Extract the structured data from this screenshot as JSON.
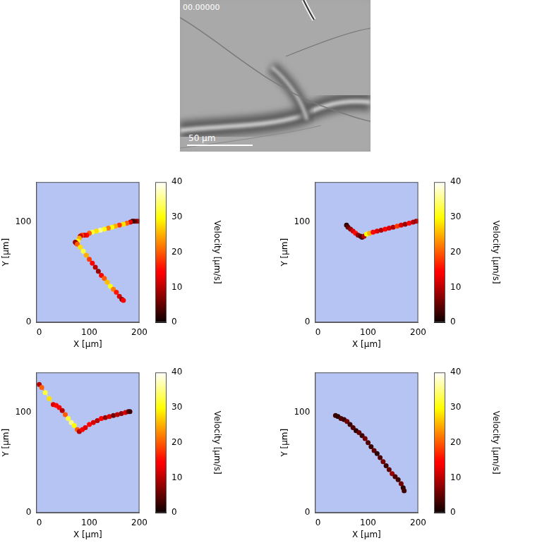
{
  "micrograph": {
    "timestamp": "00.00000",
    "scale_bar": "50 µm"
  },
  "chart_data": [
    {
      "type": "scatter",
      "xlabel": "X [µm]",
      "ylabel": "Y [µm]",
      "xlim": [
        -6,
        200
      ],
      "ylim": [
        0,
        140
      ],
      "xticks": [
        0,
        100,
        200
      ],
      "yticks": [
        0,
        100
      ],
      "grid": false,
      "marker": "circle",
      "line_style": "solid",
      "x": [
        200,
        195,
        190,
        186,
        182,
        175,
        168,
        160,
        152,
        145,
        138,
        130,
        122,
        114,
        106,
        100,
        95,
        90,
        85,
        82,
        80,
        77,
        74,
        72,
        76,
        82,
        88,
        94,
        100,
        106,
        112,
        118,
        124,
        130,
        136,
        142,
        148,
        154,
        160,
        165,
        168
      ],
      "y": [
        101,
        101,
        101,
        101,
        100,
        99,
        98,
        97,
        96,
        95,
        94,
        93,
        92,
        91,
        90,
        89,
        87,
        87,
        87,
        86,
        84,
        81,
        79,
        80,
        78,
        75,
        71,
        67,
        63,
        59,
        55,
        51,
        47,
        44,
        40,
        36,
        33,
        30,
        26,
        23,
        22
      ],
      "velocity": [
        10,
        8,
        5,
        3,
        12,
        20,
        28,
        18,
        25,
        30,
        22,
        30,
        35,
        28,
        32,
        20,
        15,
        12,
        18,
        10,
        25,
        30,
        15,
        8,
        20,
        28,
        32,
        25,
        18,
        14,
        10,
        8,
        14,
        20,
        26,
        30,
        22,
        16,
        12,
        8,
        14
      ],
      "colorbar": {
        "label": "Velocity [µm/s]",
        "range": [
          0,
          40
        ],
        "ticks": [
          0,
          10,
          20,
          30,
          40
        ]
      }
    },
    {
      "type": "scatter",
      "xlabel": "X [µm]",
      "ylabel": "Y [µm]",
      "xlim": [
        -6,
        200
      ],
      "ylim": [
        0,
        140
      ],
      "xticks": [
        0,
        100,
        200
      ],
      "yticks": [
        0,
        100
      ],
      "grid": false,
      "marker": "circle",
      "line_style": "solid",
      "x": [
        57,
        60,
        65,
        70,
        75,
        80,
        85,
        88,
        92,
        97,
        103,
        110,
        118,
        126,
        134,
        142,
        150,
        158,
        166,
        174,
        182,
        190,
        196,
        200
      ],
      "y": [
        97,
        95,
        93,
        91,
        89,
        87,
        86,
        85,
        86,
        88,
        89,
        90,
        91,
        92,
        93,
        94,
        95,
        96,
        97,
        98,
        99,
        100,
        101,
        101
      ],
      "velocity": [
        2,
        5,
        8,
        12,
        15,
        8,
        5,
        4,
        10,
        30,
        25,
        15,
        12,
        10,
        14,
        12,
        10,
        18,
        12,
        8,
        14,
        10,
        8,
        12
      ],
      "colorbar": {
        "label": "Velocity [µm/s]",
        "range": [
          0,
          40
        ],
        "ticks": [
          0,
          10,
          20,
          30,
          40
        ]
      }
    },
    {
      "type": "scatter",
      "xlabel": "X [µm]",
      "ylabel": "Y [µm]",
      "xlim": [
        -6,
        200
      ],
      "ylim": [
        0,
        140
      ],
      "xticks": [
        0,
        100,
        200
      ],
      "yticks": [
        0,
        100
      ],
      "grid": false,
      "marker": "circle",
      "line_style": "solid",
      "x": [
        0,
        5,
        12,
        20,
        28,
        34,
        40,
        46,
        52,
        58,
        64,
        70,
        76,
        80,
        86,
        92,
        100,
        108,
        116,
        124,
        132,
        140,
        148,
        156,
        164,
        172,
        178,
        181
      ],
      "y": [
        128,
        125,
        120,
        114,
        108,
        107,
        105,
        102,
        98,
        94,
        90,
        87,
        83,
        81,
        83,
        85,
        88,
        90,
        92,
        94,
        95,
        96,
        97,
        98,
        99,
        100,
        101,
        101
      ],
      "velocity": [
        10,
        20,
        32,
        28,
        12,
        15,
        14,
        10,
        20,
        32,
        35,
        30,
        20,
        10,
        14,
        12,
        15,
        12,
        10,
        14,
        8,
        12,
        6,
        10,
        8,
        12,
        6,
        3
      ],
      "colorbar": {
        "label": "Velocity [µm/s]",
        "range": [
          0,
          40
        ],
        "ticks": [
          0,
          10,
          20,
          30,
          40
        ]
      }
    },
    {
      "type": "scatter",
      "xlabel": "X [µm]",
      "ylabel": "Y [µm]",
      "xlim": [
        -6,
        200
      ],
      "ylim": [
        0,
        140
      ],
      "xticks": [
        0,
        100,
        200
      ],
      "yticks": [
        0,
        100
      ],
      "grid": false,
      "marker": "circle",
      "line_style": "solid",
      "x": [
        35,
        40,
        46,
        52,
        58,
        64,
        70,
        76,
        82,
        88,
        94,
        100,
        106,
        112,
        118,
        124,
        130,
        136,
        142,
        148,
        154,
        160,
        166,
        170,
        172
      ],
      "y": [
        97,
        96,
        94,
        93,
        91,
        88,
        85,
        82,
        80,
        77,
        74,
        70,
        66,
        62,
        59,
        55,
        51,
        47,
        43,
        39,
        36,
        33,
        29,
        25,
        22
      ],
      "velocity": [
        3,
        2,
        4,
        3,
        6,
        3,
        4,
        2,
        5,
        3,
        6,
        4,
        3,
        5,
        2,
        4,
        6,
        3,
        5,
        8,
        4,
        3,
        6,
        2,
        3
      ],
      "colorbar": {
        "label": "Velocity [µm/s]",
        "range": [
          0,
          40
        ],
        "ticks": [
          0,
          10,
          20,
          30,
          40
        ]
      }
    }
  ]
}
